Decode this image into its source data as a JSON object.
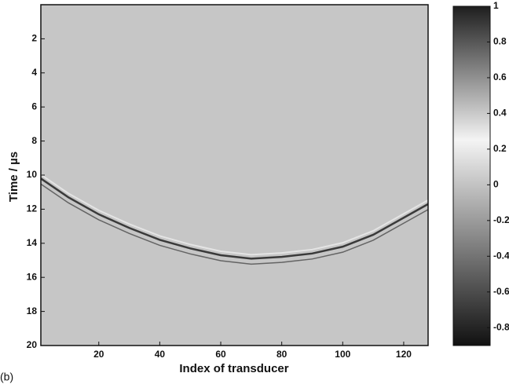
{
  "chart_data": {
    "type": "heatmap",
    "xlabel": "Index of transducer",
    "ylabel": "Time / µs",
    "panel_label": "(b)",
    "xlim": [
      1,
      128
    ],
    "xticks": [
      20,
      40,
      60,
      80,
      100,
      120
    ],
    "ylim": [
      20,
      0
    ],
    "yticks": [
      2,
      4,
      6,
      8,
      10,
      12,
      14,
      16,
      18,
      20
    ],
    "background": "#c6c6c6",
    "wavefront": {
      "color": "#3a3a3a",
      "x": [
        1,
        10,
        20,
        30,
        40,
        50,
        60,
        70,
        80,
        90,
        100,
        110,
        120,
        128
      ],
      "values": [
        10.2,
        11.3,
        12.3,
        13.1,
        13.8,
        14.3,
        14.7,
        14.9,
        14.8,
        14.6,
        14.2,
        13.5,
        12.5,
        11.7
      ]
    },
    "clim": [
      -0.9,
      1
    ],
    "cticks": [
      1,
      0.8,
      0.6,
      0.4,
      0.2,
      0,
      -0.2,
      -0.4,
      -0.6,
      -0.8
    ],
    "colormap": [
      {
        "value": -0.9,
        "color": "#111111"
      },
      {
        "value": 0.25,
        "color": "#f4f4f4"
      },
      {
        "value": 1,
        "color": "#1e1e1e"
      }
    ]
  }
}
